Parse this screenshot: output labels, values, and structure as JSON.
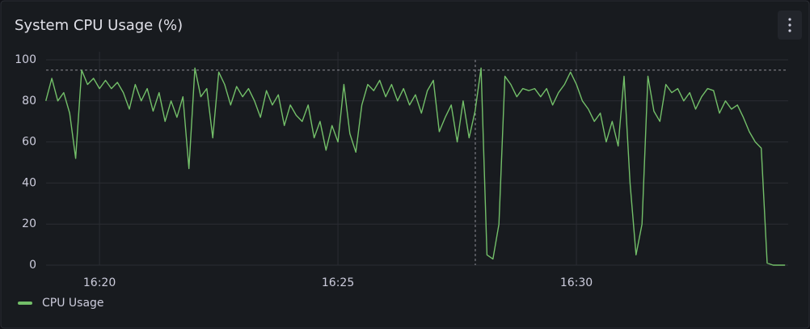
{
  "chart_data": {
    "type": "line",
    "title": "System CPU Usage (%)",
    "x": [
      18.875,
      19,
      19.125,
      19.25,
      19.375,
      19.5,
      19.625,
      19.75,
      19.875,
      20,
      20.125,
      20.25,
      20.375,
      20.5,
      20.625,
      20.75,
      20.875,
      21,
      21.125,
      21.25,
      21.375,
      21.5,
      21.625,
      21.75,
      21.875,
      22,
      22.125,
      22.25,
      22.375,
      22.5,
      22.625,
      22.75,
      22.875,
      23,
      23.125,
      23.25,
      23.375,
      23.5,
      23.625,
      23.75,
      23.875,
      24,
      24.125,
      24.25,
      24.375,
      24.5,
      24.625,
      24.75,
      24.875,
      25,
      25.125,
      25.25,
      25.375,
      25.5,
      25.625,
      25.75,
      25.875,
      26,
      26.125,
      26.25,
      26.375,
      26.5,
      26.625,
      26.75,
      26.875,
      27,
      27.125,
      27.25,
      27.375,
      27.5,
      27.625,
      27.75,
      27.875,
      28,
      28.125,
      28.25,
      28.375,
      28.5,
      28.625,
      28.75,
      28.875,
      29,
      29.125,
      29.25,
      29.375,
      29.5,
      29.625,
      29.75,
      29.875,
      30,
      30.125,
      30.25,
      30.375,
      30.5,
      30.625,
      30.75,
      30.875,
      31,
      31.125,
      31.25,
      31.375,
      31.5,
      31.625,
      31.75,
      31.875,
      32,
      32.125,
      32.25,
      32.375,
      32.5,
      32.625,
      32.75,
      32.875,
      33,
      33.125,
      33.25,
      33.375,
      33.5,
      33.625,
      33.75,
      33.875,
      34,
      34.125,
      34.25,
      34.375
    ],
    "series": [
      {
        "name": "CPU Usage",
        "color": "#73bf69",
        "values": [
          80,
          91,
          80,
          84,
          74,
          52,
          95,
          88,
          91,
          86,
          90,
          86,
          89,
          84,
          76,
          88,
          80,
          86,
          75,
          84,
          70,
          80,
          72,
          82,
          47,
          96,
          82,
          86,
          62,
          94,
          88,
          78,
          87,
          82,
          86,
          80,
          72,
          85,
          78,
          83,
          68,
          78,
          73,
          70,
          78,
          62,
          70,
          56,
          68,
          60,
          88,
          64,
          55,
          78,
          88,
          85,
          90,
          82,
          88,
          80,
          86,
          78,
          83,
          74,
          85,
          90,
          65,
          72,
          78,
          60,
          80,
          62,
          75,
          96,
          5,
          3,
          20,
          92,
          88,
          82,
          86,
          85,
          86,
          82,
          86,
          78,
          84,
          88,
          94,
          88,
          80,
          76,
          70,
          74,
          60,
          70,
          58,
          92,
          40,
          5,
          20,
          92,
          75,
          70,
          88,
          84,
          86,
          80,
          84,
          76,
          82,
          86,
          85,
          74,
          80,
          76,
          78,
          72,
          65,
          60,
          57,
          1,
          0,
          0,
          0
        ]
      }
    ],
    "xlim": [
      18.88,
      34.44
    ],
    "xticks": [
      {
        "value": 20,
        "label": "16:20"
      },
      {
        "value": 25,
        "label": "16:25"
      },
      {
        "value": 30,
        "label": "16:30"
      }
    ],
    "ylim": [
      0,
      100
    ],
    "yticks": [
      0,
      20,
      40,
      60,
      80,
      100
    ],
    "grid": true,
    "threshold": 95,
    "crosshair_x": 27.88
  }
}
